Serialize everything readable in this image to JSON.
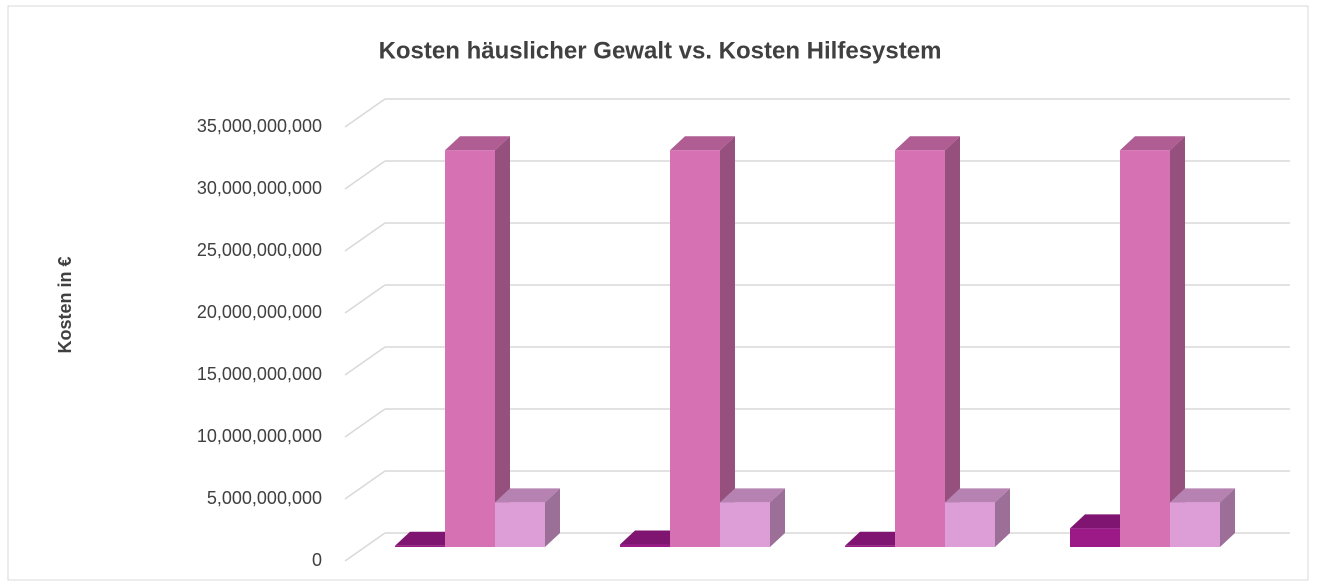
{
  "chart_data": {
    "type": "bar3d",
    "title": "Kosten häuslicher Gewalt vs. Kosten Hilfesystem",
    "ylabel": "Kosten in €",
    "categories": [
      null,
      null,
      null,
      null
    ],
    "series": [
      {
        "color": "#9b1a88",
        "values": [
          100000000,
          200000000,
          100000000,
          1500000000
        ]
      },
      {
        "color": "#d672b3",
        "values": [
          32000000000,
          32000000000,
          32000000000,
          32000000000
        ]
      },
      {
        "color": "#dd9ed8",
        "values": [
          3600000000,
          3600000000,
          3600000000,
          3600000000
        ]
      }
    ],
    "ylim": [
      0,
      35000000000
    ],
    "yticks": [
      {
        "value": 0,
        "label": "0"
      },
      {
        "value": 5000000000,
        "label": "5,000,000,000"
      },
      {
        "value": 10000000000,
        "label": "10,000,000,000"
      },
      {
        "value": 15000000000,
        "label": "15,000,000,000"
      },
      {
        "value": 20000000000,
        "label": "20,000,000,000"
      },
      {
        "value": 25000000000,
        "label": "25,000,000,000"
      },
      {
        "value": 30000000000,
        "label": "30,000,000,000"
      },
      {
        "value": 35000000000,
        "label": "35,000,000,000"
      }
    ],
    "grid": true
  }
}
